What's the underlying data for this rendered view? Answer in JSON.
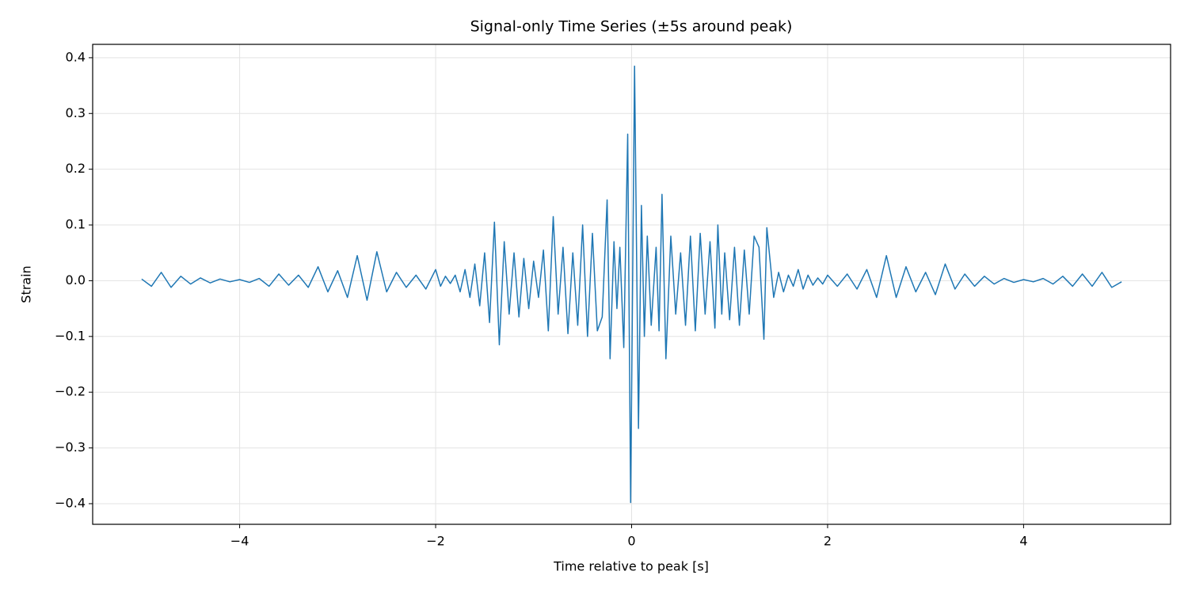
{
  "chart_data": {
    "type": "line",
    "title": "Signal-only Time Series (±5s around peak)",
    "xlabel": "Time relative to peak [s]",
    "ylabel": "Strain",
    "xlim": [
      -5.5,
      5.5
    ],
    "ylim": [
      -0.437,
      0.424
    ],
    "xticks": [
      {
        "value": -4,
        "label": "−4"
      },
      {
        "value": -2,
        "label": "−2"
      },
      0,
      2,
      4
    ],
    "yticks": [
      {
        "value": -0.4,
        "label": "−0.4"
      },
      {
        "value": -0.3,
        "label": "−0.3"
      },
      {
        "value": -0.2,
        "label": "−0.2"
      },
      {
        "value": -0.1,
        "label": "−0.1"
      },
      {
        "value": 0,
        "label": "0.0"
      },
      0.1,
      0.2,
      0.3,
      0.4
    ],
    "grid": true,
    "x": [
      -5.0,
      -4.9,
      -4.8,
      -4.7,
      -4.6,
      -4.5,
      -4.4,
      -4.3,
      -4.2,
      -4.1,
      -4.0,
      -3.9,
      -3.8,
      -3.7,
      -3.6,
      -3.5,
      -3.4,
      -3.3,
      -3.2,
      -3.1,
      -3.0,
      -2.9,
      -2.8,
      -2.7,
      -2.6,
      -2.5,
      -2.4,
      -2.3,
      -2.2,
      -2.1,
      -2.0,
      -1.95,
      -1.9,
      -1.85,
      -1.8,
      -1.75,
      -1.7,
      -1.65,
      -1.6,
      -1.55,
      -1.5,
      -1.45,
      -1.4,
      -1.35,
      -1.3,
      -1.25,
      -1.2,
      -1.15,
      -1.1,
      -1.05,
      -1.0,
      -0.95,
      -0.9,
      -0.85,
      -0.8,
      -0.75,
      -0.7,
      -0.65,
      -0.6,
      -0.55,
      -0.5,
      -0.45,
      -0.4,
      -0.35,
      -0.3,
      -0.25,
      -0.22,
      -0.18,
      -0.15,
      -0.12,
      -0.08,
      -0.04,
      -0.01,
      0.03,
      0.07,
      0.1,
      0.13,
      0.16,
      0.2,
      0.25,
      0.28,
      0.31,
      0.35,
      0.4,
      0.45,
      0.5,
      0.55,
      0.6,
      0.65,
      0.7,
      0.75,
      0.8,
      0.85,
      0.88,
      0.92,
      0.95,
      1.0,
      1.05,
      1.1,
      1.15,
      1.2,
      1.25,
      1.3,
      1.35,
      1.38,
      1.45,
      1.5,
      1.55,
      1.6,
      1.65,
      1.7,
      1.75,
      1.8,
      1.85,
      1.9,
      1.95,
      2.0,
      2.1,
      2.2,
      2.3,
      2.4,
      2.5,
      2.6,
      2.7,
      2.8,
      2.9,
      3.0,
      3.1,
      3.2,
      3.3,
      3.4,
      3.5,
      3.6,
      3.7,
      3.8,
      3.9,
      4.0,
      4.1,
      4.2,
      4.3,
      4.4,
      4.5,
      4.6,
      4.7,
      4.8,
      4.9,
      5.0
    ],
    "series": [
      {
        "color": "#1f77b4",
        "values": [
          0.003,
          -0.01,
          0.015,
          -0.012,
          0.008,
          -0.006,
          0.005,
          -0.004,
          0.003,
          -0.002,
          0.002,
          -0.003,
          0.004,
          -0.01,
          0.012,
          -0.008,
          0.01,
          -0.012,
          0.025,
          -0.02,
          0.018,
          -0.03,
          0.045,
          -0.035,
          0.052,
          -0.02,
          0.015,
          -0.012,
          0.01,
          -0.015,
          0.02,
          -0.01,
          0.008,
          -0.005,
          0.01,
          -0.02,
          0.02,
          -0.03,
          0.03,
          -0.045,
          0.05,
          -0.075,
          0.105,
          -0.115,
          0.07,
          -0.06,
          0.05,
          -0.065,
          0.04,
          -0.05,
          0.035,
          -0.03,
          0.055,
          -0.09,
          0.115,
          -0.06,
          0.06,
          -0.095,
          0.05,
          -0.08,
          0.1,
          -0.1,
          0.085,
          -0.09,
          -0.065,
          0.145,
          -0.14,
          0.07,
          -0.05,
          0.06,
          -0.12,
          0.263,
          -0.398,
          0.385,
          -0.265,
          0.135,
          -0.1,
          0.08,
          -0.08,
          0.06,
          -0.09,
          0.155,
          -0.14,
          0.08,
          -0.06,
          0.05,
          -0.08,
          0.08,
          -0.09,
          0.085,
          -0.06,
          0.07,
          -0.085,
          0.1,
          -0.06,
          0.05,
          -0.07,
          0.06,
          -0.08,
          0.055,
          -0.06,
          0.08,
          0.06,
          -0.105,
          0.095,
          -0.03,
          0.015,
          -0.02,
          0.01,
          -0.01,
          0.02,
          -0.015,
          0.01,
          -0.008,
          0.005,
          -0.006,
          0.01,
          -0.01,
          0.012,
          -0.015,
          0.02,
          -0.03,
          0.045,
          -0.03,
          0.025,
          -0.02,
          0.015,
          -0.025,
          0.03,
          -0.015,
          0.012,
          -0.01,
          0.008,
          -0.006,
          0.004,
          -0.003,
          0.002,
          -0.002,
          0.004,
          -0.006,
          0.008,
          -0.01,
          0.012,
          -0.01,
          0.015,
          -0.012,
          -0.002
        ]
      }
    ]
  }
}
